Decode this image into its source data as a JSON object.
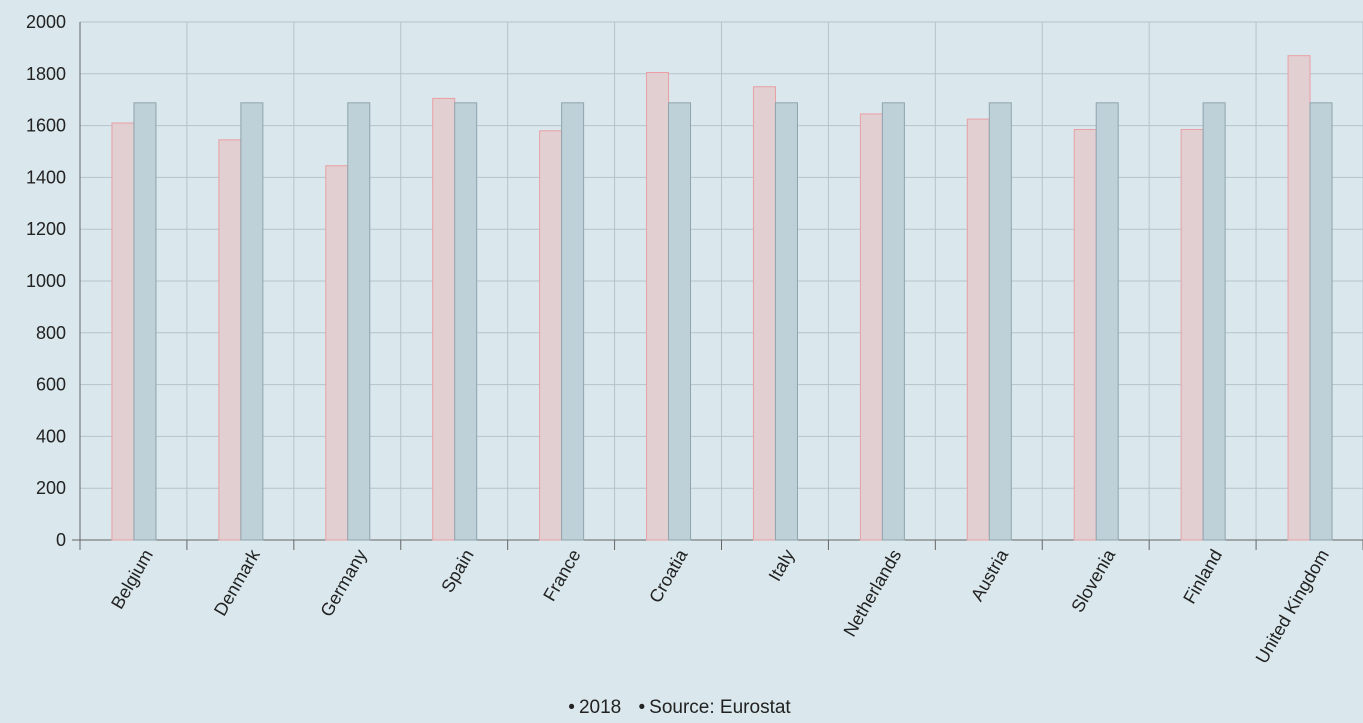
{
  "chart_data": {
    "type": "bar",
    "categories": [
      "Belgium",
      "Denmark",
      "Germany",
      "Spain",
      "France",
      "Croatia",
      "Italy",
      "Netherlands",
      "Austria",
      "Slovenia",
      "Finland",
      "United Kingdom"
    ],
    "series": [
      {
        "values": [
          1610,
          1545,
          1445,
          1705,
          1580,
          1805,
          1750,
          1645,
          1625,
          1585,
          1585,
          1870
        ],
        "color": "#e2cfd2",
        "stroke": "#e8a0a4"
      },
      {
        "values": [
          1688,
          1688,
          1688,
          1688,
          1688,
          1688,
          1688,
          1688,
          1688,
          1688,
          1688,
          1688
        ],
        "color": "#bfd1d8",
        "stroke": "#8fa4ad"
      }
    ],
    "ylim": [
      0,
      2000
    ],
    "yticks": [
      0,
      200,
      400,
      600,
      800,
      1000,
      1200,
      1400,
      1600,
      1800,
      2000
    ],
    "grid": true,
    "legend": [
      "2018",
      "Source: Eurostat"
    ],
    "legend_position": "bottom-center"
  }
}
